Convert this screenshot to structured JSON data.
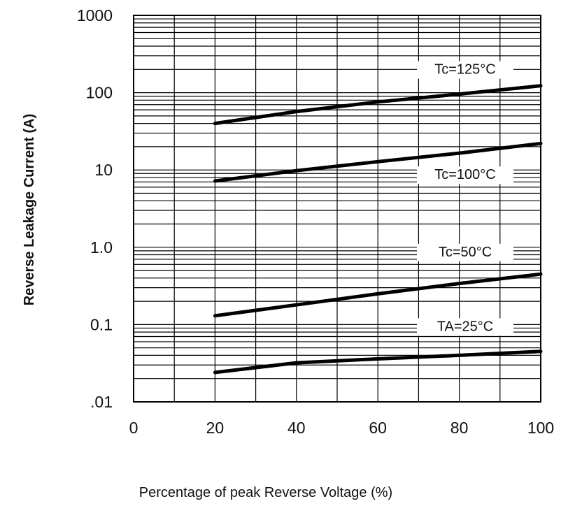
{
  "chart_data": {
    "type": "line",
    "title": "",
    "xlabel": "Percentage of peak Reverse Voltage (%)",
    "ylabel": "Reverse Leakage Current (A)",
    "x_scale": "linear",
    "y_scale": "log",
    "xlim": [
      0,
      100
    ],
    "ylim": [
      0.01,
      1000
    ],
    "x_ticks": [
      0,
      20,
      40,
      60,
      80,
      100
    ],
    "x_tick_labels": [
      "0",
      "20",
      "40",
      "60",
      "80",
      "100"
    ],
    "y_ticks": [
      0.01,
      0.1,
      1,
      10,
      100,
      1000
    ],
    "y_tick_labels": [
      ".01",
      "0.1",
      "1.0",
      "10",
      "100",
      "1000"
    ],
    "grid": true,
    "series": [
      {
        "name": "Tc=125°C",
        "x": [
          20,
          40,
          60,
          80,
          100
        ],
        "y": [
          40,
          57,
          76,
          96,
          123
        ]
      },
      {
        "name": "Tc=100°C",
        "x": [
          20,
          40,
          60,
          80,
          100
        ],
        "y": [
          7.2,
          9.8,
          12.8,
          16.5,
          22
        ]
      },
      {
        "name": "Tc=50°C",
        "x": [
          20,
          40,
          60,
          80,
          100
        ],
        "y": [
          0.13,
          0.18,
          0.25,
          0.34,
          0.45
        ]
      },
      {
        "name": "TA=25°C",
        "x": [
          20,
          40,
          60,
          80,
          100
        ],
        "y": [
          0.024,
          0.032,
          0.036,
          0.04,
          0.045
        ]
      }
    ]
  }
}
